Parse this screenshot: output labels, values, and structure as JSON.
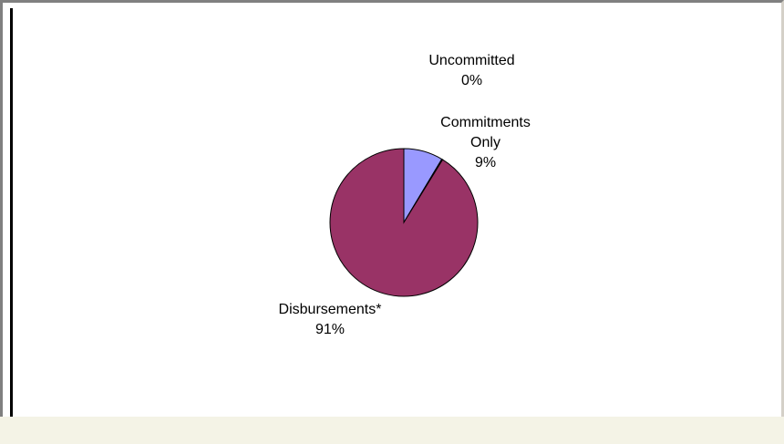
{
  "chart_data": {
    "type": "pie",
    "slices": [
      {
        "label_lines": [
          "Commitments",
          "Only"
        ],
        "percent_label": "9%",
        "value": 8.6,
        "color": "#9999ff"
      },
      {
        "label_lines": [
          "Uncommitted"
        ],
        "percent_label": "0%",
        "value": 0.2,
        "color": "#ffffcc"
      },
      {
        "label_lines": [
          "Disbursements*"
        ],
        "percent_label": "91%",
        "value": 91.2,
        "color": "#993366"
      }
    ]
  }
}
